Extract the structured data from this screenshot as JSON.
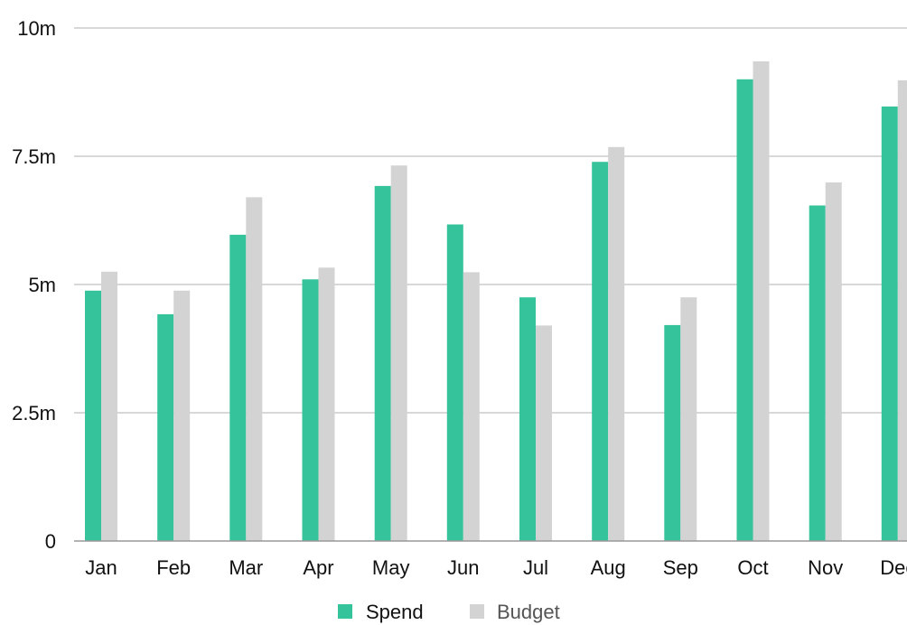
{
  "chart_data": {
    "type": "bar",
    "title": "",
    "xlabel": "",
    "ylabel": "",
    "categories": [
      "Jan",
      "Feb",
      "Mar",
      "Apr",
      "May",
      "Jun",
      "Jul",
      "Aug",
      "Sep",
      "Oct",
      "Nov",
      "Dec"
    ],
    "series": [
      {
        "name": "Spend",
        "color": "#34c39a",
        "values": [
          4.88,
          4.42,
          5.97,
          5.1,
          6.92,
          6.17,
          4.75,
          7.39,
          4.21,
          9.0,
          6.54,
          8.47
        ]
      },
      {
        "name": "Budget",
        "color": "#d3d3d3",
        "values": [
          5.25,
          4.88,
          6.7,
          5.33,
          7.32,
          5.24,
          4.2,
          7.68,
          4.75,
          9.35,
          6.99,
          8.98
        ]
      }
    ],
    "ylim": [
      0,
      10
    ],
    "yticks": [
      {
        "value": 0,
        "label": "0"
      },
      {
        "value": 2.5,
        "label": "2.5m"
      },
      {
        "value": 5,
        "label": "5m"
      },
      {
        "value": 7.5,
        "label": "7.5m"
      },
      {
        "value": 10,
        "label": "10m"
      }
    ],
    "grid": true,
    "legend_position": "bottom-center",
    "gridline_color": "#cccccc",
    "axis_color": "#999999",
    "text_color": "#111111",
    "legend_text_color": "#555555"
  }
}
